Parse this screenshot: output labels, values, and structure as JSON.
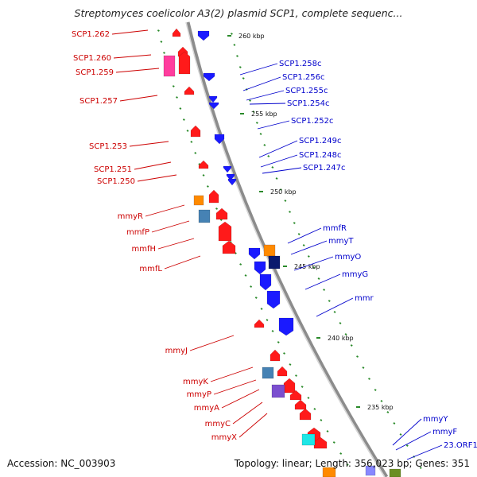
{
  "title": "Streptomyces coelicolor A3(2) plasmid SCP1, complete sequenc...",
  "footer": {
    "accession": "Accession: NC_003903",
    "summary": "Topology: linear; Length: 356,023 bp; Genes: 351"
  },
  "colors": {
    "backbone": "#8c8c8c",
    "forward_label": "#cc0000",
    "reverse_label": "#0000cc",
    "forward_gene": "#ff1a1a",
    "reverse_gene": "#1a1aff",
    "tick": "#2a8a2a"
  },
  "kbp_markers": [
    "260 kbp",
    "255 kbp",
    "250 kbp",
    "245 kbp",
    "240 kbp",
    "235 kbp"
  ],
  "forward_labels": [
    "SCP1.262",
    "SCP1.260",
    "SCP1.259",
    "SCP1.257",
    "SCP1.253",
    "SCP1.251",
    "SCP1.250",
    "mmyR",
    "mmfP",
    "mmfH",
    "mmfL",
    "mmyJ",
    "mmyK",
    "mmyP",
    "mmyA",
    "mmyC",
    "mmyX"
  ],
  "reverse_labels": [
    "SCP1.258c",
    "SCP1.256c",
    "SCP1.255c",
    "SCP1.254c",
    "SCP1.252c",
    "SCP1.249c",
    "SCP1.248c",
    "SCP1.247c",
    "mmfR",
    "mmyT",
    "mmyO",
    "mmyG",
    "mmr",
    "mmyY",
    "mmyF",
    "23.ORF1"
  ]
}
